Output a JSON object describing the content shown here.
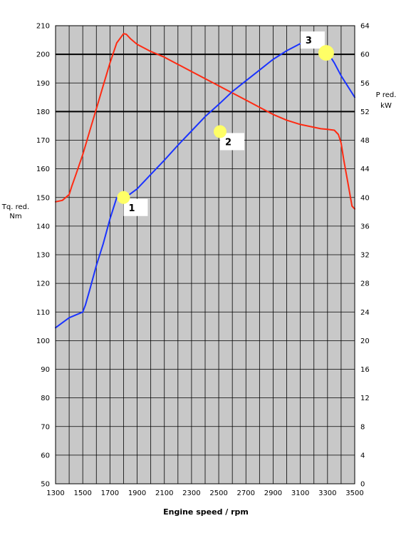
{
  "chart_data": {
    "type": "line",
    "xlabel": "Engine speed / rpm",
    "ylabel_left": [
      "Tq. red.",
      "Nm"
    ],
    "ylabel_right": [
      "P red.",
      "kW"
    ],
    "xlim": [
      1300,
      3500
    ],
    "ylim_left": [
      50,
      210
    ],
    "ylim_right": [
      0,
      64
    ],
    "x_ticks": [
      1300,
      1500,
      1700,
      1900,
      2100,
      2300,
      2500,
      2700,
      2900,
      3100,
      3300,
      3500
    ],
    "x_tick_labels": [
      "1300",
      "1500",
      "1700",
      "1900",
      "2100",
      "2300",
      "2500",
      "2700",
      "2900",
      "3100",
      "3300",
      "3500"
    ],
    "y_left_ticks": [
      50,
      60,
      70,
      80,
      90,
      100,
      110,
      120,
      130,
      140,
      150,
      160,
      170,
      180,
      190,
      200,
      210
    ],
    "y_right_ticks": [
      0,
      4,
      8,
      12,
      16,
      20,
      24,
      28,
      32,
      36,
      40,
      44,
      48,
      52,
      56,
      60,
      64
    ],
    "grid": true,
    "vertical_grid_step": 100,
    "highlight_lines_left": [
      180,
      200
    ],
    "colors": {
      "plot_bg": "#c8c8c8",
      "grid": "#000000",
      "torque": "#ff2a12",
      "power": "#1a33ff",
      "marker": "#ffff66"
    },
    "series": [
      {
        "key": "torque",
        "axis": "left",
        "x": [
          1300,
          1350,
          1400,
          1420,
          1450,
          1500,
          1550,
          1600,
          1650,
          1700,
          1750,
          1800,
          1820,
          1850,
          1900,
          2000,
          2100,
          2200,
          2300,
          2400,
          2500,
          2600,
          2700,
          2800,
          2900,
          3000,
          3100,
          3200,
          3250,
          3300,
          3350,
          3380,
          3400,
          3420,
          3450,
          3480,
          3500
        ],
        "y": [
          148.5,
          149,
          151,
          154,
          158,
          165,
          173,
          181,
          189,
          197,
          204,
          207.2,
          207,
          205.5,
          203.5,
          201,
          199,
          196.5,
          194,
          191.5,
          189,
          186.5,
          184,
          181.5,
          179,
          177,
          175.5,
          174.5,
          174,
          173.8,
          173.5,
          172,
          169,
          163,
          155,
          147,
          146
        ]
      },
      {
        "key": "power",
        "axis": "right",
        "x": [
          1300,
          1350,
          1400,
          1450,
          1500,
          1520,
          1550,
          1600,
          1650,
          1700,
          1750,
          1800,
          1850,
          1900,
          2000,
          2100,
          2200,
          2300,
          2400,
          2500,
          2600,
          2700,
          2800,
          2900,
          3000,
          3100,
          3200,
          3250,
          3300,
          3350,
          3400,
          3450,
          3500
        ],
        "y": [
          21.8,
          22.5,
          23.2,
          23.6,
          24,
          25,
          27,
          30.5,
          33.5,
          37,
          40,
          39.8,
          40.5,
          41.2,
          43.2,
          45.2,
          47.3,
          49.3,
          51.3,
          53,
          54.8,
          56.3,
          57.8,
          59.3,
          60.5,
          61.5,
          61.2,
          61.6,
          60.3,
          58.8,
          57,
          55.5,
          54
        ]
      }
    ],
    "callouts": [
      {
        "label": "1",
        "x": 1800,
        "y_left": 150
      },
      {
        "label": "2",
        "x": 2510,
        "y_left": 173
      },
      {
        "label": "3",
        "x": 3290,
        "y_left": 200.5
      }
    ]
  }
}
